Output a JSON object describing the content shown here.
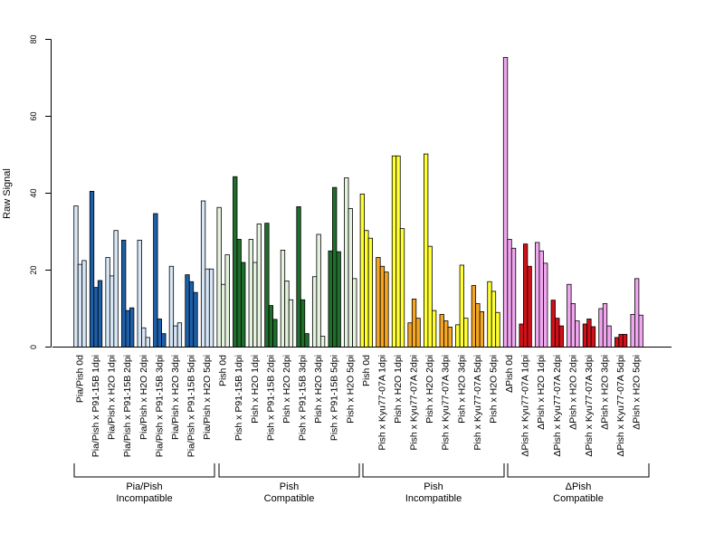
{
  "chart_data": {
    "type": "bar",
    "ylabel": "Raw Signal",
    "ylim": [
      0,
      80
    ],
    "yticks": [
      0,
      20,
      40,
      60,
      80
    ],
    "group_titles": [
      [
        "Pia/Pish",
        "Incompatible"
      ],
      [
        "Pish",
        "Compatible"
      ],
      [
        "Pish",
        "Incompatible"
      ],
      [
        "ΔPish",
        "Compatible"
      ]
    ],
    "series": [
      {
        "name": "Pia/Pish 0d",
        "color": "#d6e6f6",
        "values": [
          36.7,
          21.5,
          22.5
        ]
      },
      {
        "name": "Pia/Pish x P91-15B 1dpi",
        "color": "#1d5fa8",
        "values": [
          40.5,
          15.5,
          17.3
        ]
      },
      {
        "name": "Pia/Pish x H2O 1dpi",
        "color": "#d6e6f6",
        "values": [
          23.3,
          18.5,
          30.3
        ]
      },
      {
        "name": "Pia/Pish x P91-15B 2dpi",
        "color": "#1d5fa8",
        "values": [
          27.8,
          9.5,
          10.2
        ]
      },
      {
        "name": "Pia/Pish x H2O 2dpi",
        "color": "#d6e6f6",
        "values": [
          27.8,
          5.0,
          2.5
        ]
      },
      {
        "name": "Pia/Pish x P91-15B 3dpi",
        "color": "#1d5fa8",
        "values": [
          34.7,
          7.3,
          3.5
        ]
      },
      {
        "name": "Pia/Pish x H2O 3dpi",
        "color": "#d6e6f6",
        "values": [
          21.0,
          5.5,
          6.3
        ]
      },
      {
        "name": "Pia/Pish x P91-15B 5dpi",
        "color": "#1d5fa8",
        "values": [
          18.8,
          17.0,
          14.2
        ]
      },
      {
        "name": "Pia/Pish x H2O 5dpi",
        "color": "#d6e6f6",
        "values": [
          38.0,
          20.3,
          20.3
        ]
      },
      {
        "name": "Pish 0d",
        "color": "#e4f2de",
        "values": [
          36.3,
          16.3,
          24.0
        ]
      },
      {
        "name": "Pish x P91-15B 1dpi",
        "color": "#1f6e2c",
        "values": [
          44.3,
          28.0,
          22.0
        ]
      },
      {
        "name": "Pish x H2O 1dpi",
        "color": "#e4f2de",
        "values": [
          28.0,
          22.0,
          32.0
        ]
      },
      {
        "name": "Pish x P91-15B 2dpi",
        "color": "#1f6e2c",
        "values": [
          32.2,
          10.8,
          7.2
        ]
      },
      {
        "name": "Pish x H2O 2dpi",
        "color": "#e4f2de",
        "values": [
          25.2,
          17.2,
          12.3
        ]
      },
      {
        "name": "Pish x P91-15B 3dpi",
        "color": "#1f6e2c",
        "values": [
          36.5,
          12.3,
          3.5
        ]
      },
      {
        "name": "Pish x H2O 3dpi",
        "color": "#e4f2de",
        "values": [
          18.3,
          29.3,
          2.8
        ]
      },
      {
        "name": "Pish x P91-15B 5dpi",
        "color": "#1f6e2c",
        "values": [
          25.0,
          41.5,
          24.8
        ]
      },
      {
        "name": "Pish x H2O 5dpi",
        "color": "#e4f2de",
        "values": [
          44.0,
          36.0,
          17.8
        ]
      },
      {
        "name": "Pish 0d",
        "color": "#ffff33",
        "values": [
          39.8,
          30.3,
          28.3
        ]
      },
      {
        "name": "Pish x Kyu77-07A 1dpi",
        "color": "#f5a623",
        "values": [
          23.3,
          21.0,
          19.5
        ]
      },
      {
        "name": "Pish x H2O 1dpi",
        "color": "#ffff33",
        "values": [
          49.7,
          49.7,
          30.8
        ]
      },
      {
        "name": "Pish x Kyu77-07A 2dpi",
        "color": "#f5a623",
        "values": [
          6.3,
          12.5,
          7.5
        ]
      },
      {
        "name": "Pish x H2O 2dpi",
        "color": "#ffff33",
        "values": [
          50.2,
          26.2,
          9.5
        ]
      },
      {
        "name": "Pish x Kyu77-07A 3dpi",
        "color": "#f5a623",
        "values": [
          8.5,
          6.8,
          5.2
        ]
      },
      {
        "name": "Pish x H2O 3dpi",
        "color": "#ffff33",
        "values": [
          5.8,
          21.3,
          7.5
        ]
      },
      {
        "name": "Pish x Kyu77-07A 5dpi",
        "color": "#f5a623",
        "values": [
          16.0,
          11.3,
          9.2
        ]
      },
      {
        "name": "Pish x H2O 5dpi",
        "color": "#ffff33",
        "values": [
          17.0,
          14.5,
          9.0
        ]
      },
      {
        "name": "ΔPish 0d",
        "color": "#f0a6ee",
        "values": [
          75.3,
          28.0,
          25.7
        ]
      },
      {
        "name": "ΔPish x Kyu77-07A 1dpi",
        "color": "#d0101a",
        "values": [
          6.0,
          26.8,
          21.0
        ]
      },
      {
        "name": "ΔPish x H2O 1dpi",
        "color": "#f0a6ee",
        "values": [
          27.2,
          25.0,
          21.8
        ]
      },
      {
        "name": "ΔPish x Kyu77-07A 2dpi",
        "color": "#d0101a",
        "values": [
          12.2,
          7.5,
          5.5
        ]
      },
      {
        "name": "ΔPish x H2O 2dpi",
        "color": "#f0a6ee",
        "values": [
          16.3,
          11.3,
          6.8
        ]
      },
      {
        "name": "ΔPish x Kyu77-07A 3dpi",
        "color": "#d0101a",
        "values": [
          6.0,
          7.3,
          5.3
        ]
      },
      {
        "name": "ΔPish x H2O 3dpi",
        "color": "#f0a6ee",
        "values": [
          10.0,
          11.3,
          5.5
        ]
      },
      {
        "name": "ΔPish x Kyu77-07A 5dpi",
        "color": "#d0101a",
        "values": [
          2.5,
          3.3,
          3.3
        ]
      },
      {
        "name": "ΔPish x H2O 5dpi",
        "color": "#f0a6ee",
        "values": [
          8.5,
          17.8,
          8.3
        ]
      }
    ]
  }
}
